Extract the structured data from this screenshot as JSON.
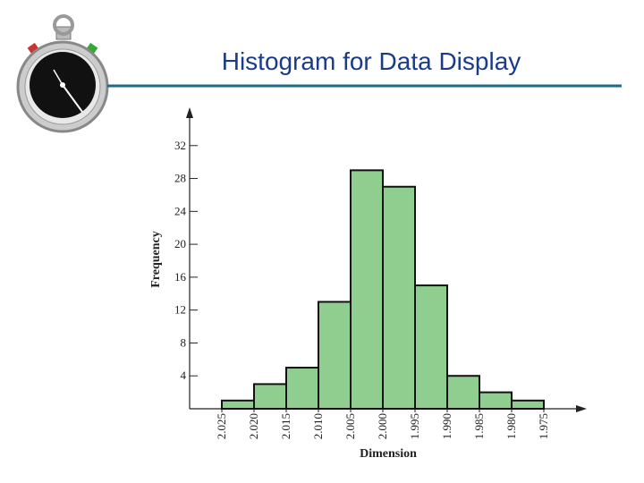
{
  "chart_data": {
    "type": "histogram",
    "title": "Histogram for Data Display",
    "x_label": "Dimension",
    "y_label": "Frequency",
    "bins": [
      2.025,
      2.02,
      2.015,
      2.01,
      2.005,
      2.0,
      1.995,
      1.99,
      1.985,
      1.98,
      1.975
    ],
    "values": [
      1,
      3,
      5,
      13,
      29,
      27,
      15,
      4,
      2,
      1
    ],
    "color": "#8fce8f",
    "xlim": [
      2.03,
      1.97
    ],
    "xticks": [
      {
        "value": 2.025,
        "label": "2.025"
      },
      {
        "value": 2.02,
        "label": "2.020"
      },
      {
        "value": 2.015,
        "label": "2.015"
      },
      {
        "value": 2.01,
        "label": "2.010"
      },
      {
        "value": 2.005,
        "label": "2.005"
      },
      {
        "value": 2.0,
        "label": "2.000"
      },
      {
        "value": 1.995,
        "label": "1.995"
      },
      {
        "value": 1.99,
        "label": "1.990"
      },
      {
        "value": 1.985,
        "label": "1.985"
      },
      {
        "value": 1.98,
        "label": "1.980"
      },
      {
        "value": 1.975,
        "label": "1.975"
      }
    ],
    "ylim": [
      0,
      36
    ],
    "yticks": [
      4,
      8,
      12,
      16,
      20,
      24,
      28,
      32
    ]
  }
}
